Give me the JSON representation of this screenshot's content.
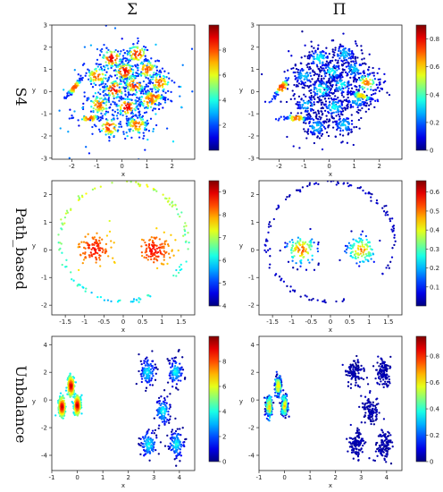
{
  "figure": {
    "column_titles": [
      "Σ",
      "Π"
    ],
    "row_titles": [
      "S4",
      "Path_based",
      "Unbalance"
    ]
  },
  "chart_data": [
    {
      "id": "s4-sigma",
      "type": "scatter",
      "row": 0,
      "col": 0,
      "dataset": "S4",
      "measure": "Σ",
      "xlabel": "x",
      "ylabel": "y",
      "xlim": [
        -2.8,
        2.9
      ],
      "ylim": [
        -3.05,
        3.0
      ],
      "xticks": [
        -2,
        -1,
        0,
        1,
        2
      ],
      "yticks": [
        -3,
        -2,
        -1,
        0,
        1,
        2,
        3
      ],
      "colorbar": {
        "range": [
          0,
          10
        ],
        "ticks": [
          2,
          4,
          6,
          8
        ]
      },
      "point_count": 1400,
      "cluster_spread": 0.26,
      "clusters": [
        {
          "x": -0.4,
          "y": 1.5,
          "value": 9
        },
        {
          "x": 0.6,
          "y": 1.7,
          "value": 8.5
        },
        {
          "x": -1.0,
          "y": 0.7,
          "value": 8
        },
        {
          "x": 0.1,
          "y": 0.9,
          "value": 9
        },
        {
          "x": 1.0,
          "y": 1.0,
          "value": 8
        },
        {
          "x": -0.3,
          "y": 0.1,
          "value": 9
        },
        {
          "x": 0.5,
          "y": 0.3,
          "value": 8.5
        },
        {
          "x": 1.5,
          "y": 0.4,
          "value": 8
        },
        {
          "x": -0.9,
          "y": -0.6,
          "value": 8
        },
        {
          "x": 0.2,
          "y": -0.7,
          "value": 9
        },
        {
          "x": 1.1,
          "y": -0.4,
          "value": 8
        },
        {
          "x": -0.5,
          "y": -1.6,
          "value": 8.5
        },
        {
          "x": 0.6,
          "y": -1.5,
          "value": 8
        },
        {
          "x": -1.9,
          "y": 0.2,
          "value": 8,
          "elongated": true,
          "angle": 55
        },
        {
          "x": -1.3,
          "y": -1.2,
          "value": 8,
          "elongated": true,
          "angle": 0
        },
        {
          "x": 1.3,
          "y": -0.2,
          "value": 8,
          "elongated": true,
          "angle": -20
        }
      ]
    },
    {
      "id": "s4-pi",
      "type": "scatter",
      "row": 0,
      "col": 1,
      "dataset": "S4",
      "measure": "Π",
      "xlabel": "x",
      "ylabel": "y",
      "xlim": [
        -2.8,
        2.9
      ],
      "ylim": [
        -3.05,
        3.0
      ],
      "xticks": [
        -2,
        -1,
        0,
        1,
        2
      ],
      "yticks": [
        -3,
        -2,
        -1,
        0,
        1,
        2,
        3
      ],
      "colorbar": {
        "range": [
          0,
          0.9
        ],
        "ticks": [
          0.0,
          0.2,
          0.4,
          0.6,
          0.8
        ]
      },
      "point_count": 1400,
      "cluster_spread": 0.26,
      "clusters": [
        {
          "x": -0.4,
          "y": 1.5,
          "value": 0.35
        },
        {
          "x": 0.6,
          "y": 1.7,
          "value": 0.3
        },
        {
          "x": -1.0,
          "y": 0.7,
          "value": 0.3
        },
        {
          "x": 0.1,
          "y": 0.9,
          "value": 0.35
        },
        {
          "x": 1.0,
          "y": 1.0,
          "value": 0.3
        },
        {
          "x": -0.3,
          "y": 0.1,
          "value": 0.4
        },
        {
          "x": 0.5,
          "y": 0.3,
          "value": 0.35
        },
        {
          "x": 1.5,
          "y": 0.4,
          "value": 0.7
        },
        {
          "x": -0.9,
          "y": -0.6,
          "value": 0.3
        },
        {
          "x": 0.2,
          "y": -0.7,
          "value": 0.35
        },
        {
          "x": 1.1,
          "y": -0.4,
          "value": 0.3
        },
        {
          "x": -0.5,
          "y": -1.6,
          "value": 0.3
        },
        {
          "x": 0.6,
          "y": -1.5,
          "value": 0.3
        },
        {
          "x": -1.9,
          "y": 0.2,
          "value": 0.75,
          "elongated": true,
          "angle": 55
        },
        {
          "x": -1.3,
          "y": -1.2,
          "value": 0.7,
          "elongated": true,
          "angle": 0
        },
        {
          "x": 1.3,
          "y": -0.2,
          "value": 0.6,
          "elongated": true,
          "angle": -20
        }
      ]
    },
    {
      "id": "pb-sigma",
      "type": "scatter",
      "row": 1,
      "col": 0,
      "dataset": "Path_based",
      "measure": "Σ",
      "xlabel": "x",
      "ylabel": "y",
      "xlim": [
        -1.85,
        1.85
      ],
      "ylim": [
        -2.35,
        2.5
      ],
      "xticks": [
        -1.5,
        -1.0,
        -0.5,
        0.0,
        0.5,
        1.0,
        1.5
      ],
      "yticks": [
        -2,
        -1,
        0,
        1,
        2
      ],
      "colorbar": {
        "range": [
          4,
          9.5
        ],
        "ticks": [
          4,
          5,
          6,
          7,
          8,
          9
        ]
      },
      "ring": {
        "cx": 0.0,
        "cy": 0.3,
        "rx": 1.65,
        "ry": 2.15,
        "gap_start_deg": 295,
        "gap_end_deg": 325,
        "count": 120,
        "value_top": 7.2,
        "value_bottom": 6.0
      },
      "blobs": [
        {
          "x": -0.75,
          "y": 0.0,
          "sx": 0.3,
          "sy": 0.4,
          "count": 110,
          "value": 9.0
        },
        {
          "x": 0.8,
          "y": 0.0,
          "sx": 0.3,
          "sy": 0.4,
          "count": 110,
          "value": 9.0
        }
      ]
    },
    {
      "id": "pb-pi",
      "type": "scatter",
      "row": 1,
      "col": 1,
      "dataset": "Path_based",
      "measure": "Π",
      "xlabel": "x",
      "ylabel": "y",
      "xlim": [
        -1.85,
        1.85
      ],
      "ylim": [
        -2.35,
        2.5
      ],
      "xticks": [
        -1.5,
        -1.0,
        -0.5,
        0.0,
        0.5,
        1.0,
        1.5
      ],
      "yticks": [
        -2,
        -1,
        0,
        1,
        2
      ],
      "colorbar": {
        "range": [
          0,
          0.66
        ],
        "ticks": [
          0.1,
          0.2,
          0.3,
          0.4,
          0.5,
          0.6
        ]
      },
      "ring": {
        "cx": 0.0,
        "cy": 0.3,
        "rx": 1.65,
        "ry": 2.15,
        "gap_start_deg": 295,
        "gap_end_deg": 325,
        "count": 120,
        "value_top": 0.02,
        "value_bottom": 0.02
      },
      "blobs": [
        {
          "x": -0.75,
          "y": 0.0,
          "sx": 0.3,
          "sy": 0.4,
          "count": 110,
          "value": 0.55
        },
        {
          "x": 0.8,
          "y": 0.0,
          "sx": 0.3,
          "sy": 0.4,
          "count": 110,
          "value": 0.5
        }
      ]
    },
    {
      "id": "ub-sigma",
      "type": "scatter",
      "row": 2,
      "col": 0,
      "dataset": "Unbalance",
      "measure": "Σ",
      "xlabel": "x",
      "ylabel": "y",
      "xlim": [
        -1.0,
        4.6
      ],
      "ylim": [
        -5.1,
        4.6
      ],
      "xticks": [
        -1,
        0,
        1,
        2,
        3,
        4
      ],
      "yticks": [
        -4,
        -2,
        0,
        2,
        4
      ],
      "colorbar": {
        "range": [
          0,
          10
        ],
        "ticks": [
          0,
          2,
          4,
          6,
          8
        ]
      },
      "clusters": [
        {
          "x": -0.6,
          "y": -0.5,
          "sx": 0.06,
          "sy": 0.35,
          "count": 220,
          "value": 9.5
        },
        {
          "x": -0.25,
          "y": 1.0,
          "sx": 0.06,
          "sy": 0.35,
          "count": 220,
          "value": 9.5
        },
        {
          "x": 0.0,
          "y": -0.4,
          "sx": 0.06,
          "sy": 0.35,
          "count": 220,
          "value": 9.5
        },
        {
          "x": 2.75,
          "y": 2.0,
          "sx": 0.15,
          "sy": 0.5,
          "count": 110,
          "value": 4
        },
        {
          "x": 3.85,
          "y": 2.0,
          "sx": 0.15,
          "sy": 0.5,
          "count": 110,
          "value": 4
        },
        {
          "x": 3.35,
          "y": -0.8,
          "sx": 0.15,
          "sy": 0.5,
          "count": 110,
          "value": 4
        },
        {
          "x": 2.8,
          "y": -3.2,
          "sx": 0.15,
          "sy": 0.5,
          "count": 110,
          "value": 4
        },
        {
          "x": 3.9,
          "y": -3.2,
          "sx": 0.15,
          "sy": 0.5,
          "count": 110,
          "value": 4
        }
      ]
    },
    {
      "id": "ub-pi",
      "type": "scatter",
      "row": 2,
      "col": 1,
      "dataset": "Unbalance",
      "measure": "Π",
      "xlabel": "x",
      "ylabel": "y",
      "xlim": [
        -1.0,
        4.6
      ],
      "ylim": [
        -5.1,
        4.6
      ],
      "xticks": [
        -1,
        0,
        1,
        2,
        3,
        4
      ],
      "yticks": [
        -4,
        -2,
        0,
        2,
        4
      ],
      "colorbar": {
        "range": [
          0,
          0.95
        ],
        "ticks": [
          0.0,
          0.2,
          0.4,
          0.6,
          0.8
        ]
      },
      "clusters": [
        {
          "x": -0.6,
          "y": -0.5,
          "sx": 0.06,
          "sy": 0.35,
          "count": 220,
          "value": 0.45
        },
        {
          "x": -0.25,
          "y": 1.0,
          "sx": 0.06,
          "sy": 0.35,
          "count": 220,
          "value": 0.45
        },
        {
          "x": 0.0,
          "y": -0.4,
          "sx": 0.06,
          "sy": 0.35,
          "count": 220,
          "value": 0.45
        },
        {
          "x": 2.75,
          "y": 2.0,
          "sx": 0.15,
          "sy": 0.5,
          "count": 110,
          "value": 0.02
        },
        {
          "x": 3.85,
          "y": 2.0,
          "sx": 0.15,
          "sy": 0.5,
          "count": 110,
          "value": 0.02
        },
        {
          "x": 3.35,
          "y": -0.8,
          "sx": 0.15,
          "sy": 0.5,
          "count": 110,
          "value": 0.02
        },
        {
          "x": 2.8,
          "y": -3.2,
          "sx": 0.15,
          "sy": 0.5,
          "count": 110,
          "value": 0.02
        },
        {
          "x": 3.9,
          "y": -3.2,
          "sx": 0.15,
          "sy": 0.5,
          "count": 110,
          "value": 0.02
        }
      ]
    }
  ]
}
